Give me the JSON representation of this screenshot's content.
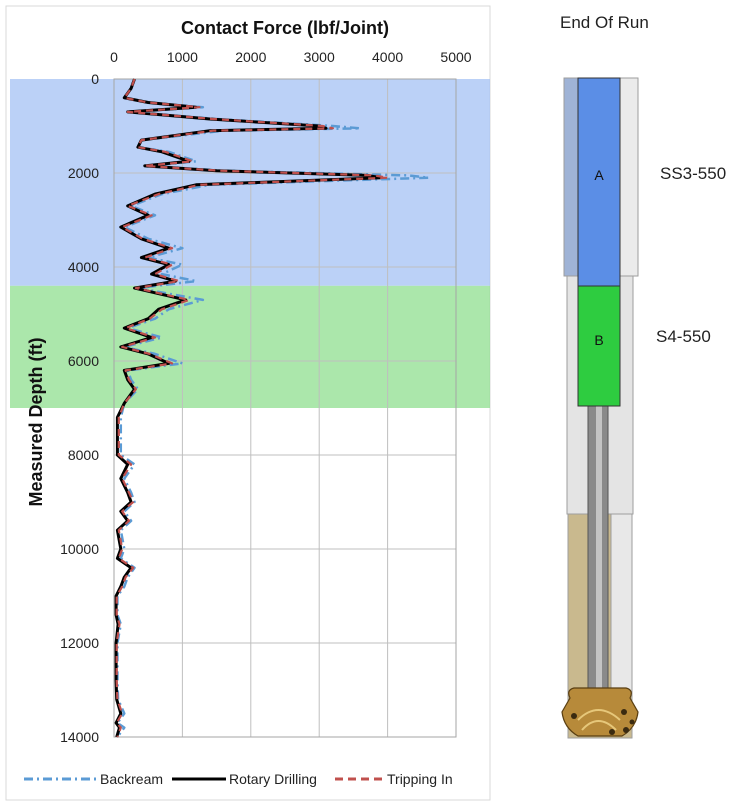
{
  "chart_data": {
    "type": "line",
    "title": "Contact Force (lbf/Joint)",
    "xlabel": "Contact Force (lbf/Joint)",
    "ylabel": "Measured Depth (ft)",
    "x_axis_position": "top",
    "y_inverted": true,
    "xlim": [
      0,
      5000
    ],
    "ylim": [
      0,
      14000
    ],
    "x_ticks": [
      0,
      1000,
      2000,
      3000,
      4000,
      5000
    ],
    "y_ticks": [
      0,
      2000,
      4000,
      6000,
      8000,
      10000,
      12000,
      14000
    ],
    "grid": true,
    "legend_position": "bottom",
    "bands": [
      {
        "label": "SS3-550",
        "depth_from": 0,
        "depth_to": 4400,
        "color": "#a4c2f4"
      },
      {
        "label": "S4-550",
        "depth_from": 4400,
        "depth_to": 7000,
        "color": "#8fdf8f"
      }
    ],
    "series": [
      {
        "name": "Backream",
        "color": "#5b9bd5",
        "style": "dash-dot",
        "points": [
          [
            300,
            0
          ],
          [
            250,
            200
          ],
          [
            150,
            400
          ],
          [
            500,
            500
          ],
          [
            1300,
            600
          ],
          [
            200,
            700
          ],
          [
            1500,
            850
          ],
          [
            3200,
            1000
          ],
          [
            3600,
            1050
          ],
          [
            1600,
            1100
          ],
          [
            400,
            1300
          ],
          [
            350,
            1450
          ],
          [
            800,
            1550
          ],
          [
            1200,
            1750
          ],
          [
            500,
            1850
          ],
          [
            1600,
            1950
          ],
          [
            4300,
            2050
          ],
          [
            4600,
            2100
          ],
          [
            1400,
            2250
          ],
          [
            700,
            2450
          ],
          [
            250,
            2700
          ],
          [
            600,
            2900
          ],
          [
            150,
            3150
          ],
          [
            500,
            3400
          ],
          [
            1000,
            3600
          ],
          [
            500,
            3800
          ],
          [
            1000,
            3950
          ],
          [
            700,
            4150
          ],
          [
            1200,
            4300
          ],
          [
            350,
            4450
          ],
          [
            1300,
            4700
          ],
          [
            800,
            4900
          ],
          [
            600,
            5100
          ],
          [
            200,
            5300
          ],
          [
            700,
            5500
          ],
          [
            150,
            5700
          ],
          [
            600,
            5850
          ],
          [
            1000,
            6050
          ],
          [
            200,
            6200
          ],
          [
            250,
            6400
          ],
          [
            350,
            6600
          ],
          [
            150,
            6900
          ],
          [
            100,
            7200
          ],
          [
            100,
            7600
          ],
          [
            100,
            8000
          ],
          [
            300,
            8200
          ],
          [
            150,
            8500
          ],
          [
            250,
            8800
          ],
          [
            300,
            9000
          ],
          [
            150,
            9200
          ],
          [
            250,
            9400
          ],
          [
            100,
            9600
          ],
          [
            150,
            10000
          ],
          [
            100,
            10200
          ],
          [
            300,
            10400
          ],
          [
            200,
            10600
          ],
          [
            150,
            10800
          ],
          [
            50,
            11000
          ],
          [
            50,
            11400
          ],
          [
            100,
            11600
          ],
          [
            50,
            12000
          ],
          [
            50,
            12400
          ],
          [
            50,
            12800
          ],
          [
            60,
            13200
          ],
          [
            150,
            13500
          ],
          [
            50,
            13700
          ],
          [
            150,
            13800
          ],
          [
            50,
            14000
          ]
        ]
      },
      {
        "name": "Rotary Drilling",
        "color": "#000000",
        "style": "solid",
        "points": [
          [
            300,
            0
          ],
          [
            250,
            200
          ],
          [
            150,
            400
          ],
          [
            500,
            500
          ],
          [
            1200,
            600
          ],
          [
            200,
            700
          ],
          [
            1400,
            850
          ],
          [
            3000,
            1000
          ],
          [
            3100,
            1050
          ],
          [
            1400,
            1100
          ],
          [
            400,
            1300
          ],
          [
            350,
            1450
          ],
          [
            700,
            1550
          ],
          [
            1100,
            1750
          ],
          [
            450,
            1850
          ],
          [
            1500,
            1950
          ],
          [
            3700,
            2050
          ],
          [
            3900,
            2100
          ],
          [
            1200,
            2250
          ],
          [
            600,
            2450
          ],
          [
            200,
            2700
          ],
          [
            500,
            2900
          ],
          [
            100,
            3150
          ],
          [
            400,
            3400
          ],
          [
            800,
            3600
          ],
          [
            400,
            3800
          ],
          [
            800,
            3950
          ],
          [
            550,
            4150
          ],
          [
            900,
            4300
          ],
          [
            300,
            4450
          ],
          [
            1050,
            4700
          ],
          [
            650,
            4900
          ],
          [
            500,
            5100
          ],
          [
            150,
            5300
          ],
          [
            550,
            5500
          ],
          [
            100,
            5700
          ],
          [
            500,
            5850
          ],
          [
            800,
            6050
          ],
          [
            150,
            6200
          ],
          [
            200,
            6400
          ],
          [
            300,
            6600
          ],
          [
            150,
            6900
          ],
          [
            50,
            7200
          ],
          [
            50,
            7600
          ],
          [
            50,
            8000
          ],
          [
            200,
            8200
          ],
          [
            100,
            8500
          ],
          [
            200,
            8800
          ],
          [
            250,
            9000
          ],
          [
            100,
            9200
          ],
          [
            200,
            9400
          ],
          [
            50,
            9600
          ],
          [
            100,
            10000
          ],
          [
            50,
            10200
          ],
          [
            250,
            10400
          ],
          [
            150,
            10600
          ],
          [
            100,
            10800
          ],
          [
            30,
            11000
          ],
          [
            30,
            11400
          ],
          [
            60,
            11600
          ],
          [
            30,
            12000
          ],
          [
            30,
            12400
          ],
          [
            30,
            12800
          ],
          [
            40,
            13200
          ],
          [
            100,
            13500
          ],
          [
            30,
            13700
          ],
          [
            80,
            13800
          ],
          [
            40,
            14000
          ]
        ]
      },
      {
        "name": "Tripping In",
        "color": "#c0504d",
        "style": "dash",
        "points": [
          [
            300,
            0
          ],
          [
            250,
            200
          ],
          [
            150,
            400
          ],
          [
            500,
            500
          ],
          [
            1250,
            600
          ],
          [
            200,
            700
          ],
          [
            1450,
            850
          ],
          [
            3050,
            1000
          ],
          [
            3200,
            1050
          ],
          [
            1450,
            1100
          ],
          [
            400,
            1300
          ],
          [
            350,
            1450
          ],
          [
            750,
            1550
          ],
          [
            1150,
            1750
          ],
          [
            450,
            1850
          ],
          [
            1550,
            1950
          ],
          [
            3800,
            2050
          ],
          [
            4000,
            2100
          ],
          [
            1250,
            2250
          ],
          [
            650,
            2450
          ],
          [
            200,
            2700
          ],
          [
            550,
            2900
          ],
          [
            120,
            3150
          ],
          [
            420,
            3400
          ],
          [
            850,
            3600
          ],
          [
            450,
            3800
          ],
          [
            850,
            3950
          ],
          [
            600,
            4150
          ],
          [
            950,
            4300
          ],
          [
            320,
            4450
          ],
          [
            1100,
            4700
          ],
          [
            700,
            4900
          ],
          [
            520,
            5100
          ],
          [
            170,
            5300
          ],
          [
            600,
            5500
          ],
          [
            120,
            5700
          ],
          [
            520,
            5850
          ],
          [
            850,
            6050
          ],
          [
            170,
            6200
          ],
          [
            220,
            6400
          ],
          [
            320,
            6600
          ],
          [
            150,
            6900
          ],
          [
            70,
            7200
          ],
          [
            70,
            7600
          ],
          [
            70,
            8000
          ],
          [
            250,
            8200
          ],
          [
            120,
            8500
          ],
          [
            220,
            8800
          ],
          [
            280,
            9000
          ],
          [
            120,
            9200
          ],
          [
            220,
            9400
          ],
          [
            70,
            9600
          ],
          [
            120,
            10000
          ],
          [
            70,
            10200
          ],
          [
            280,
            10400
          ],
          [
            170,
            10600
          ],
          [
            120,
            10800
          ],
          [
            40,
            11000
          ],
          [
            40,
            11400
          ],
          [
            80,
            11600
          ],
          [
            40,
            12000
          ],
          [
            40,
            12400
          ],
          [
            40,
            12800
          ],
          [
            50,
            13200
          ],
          [
            120,
            13500
          ],
          [
            40,
            13700
          ],
          [
            100,
            13800
          ],
          [
            50,
            14000
          ]
        ]
      }
    ]
  },
  "diagram": {
    "title": "End Of Run",
    "segments": [
      {
        "letter": "A",
        "name": "SS3-550",
        "color": "#5b8ee6"
      },
      {
        "letter": "B",
        "name": "S4-550",
        "color": "#2ecc40"
      }
    ]
  }
}
